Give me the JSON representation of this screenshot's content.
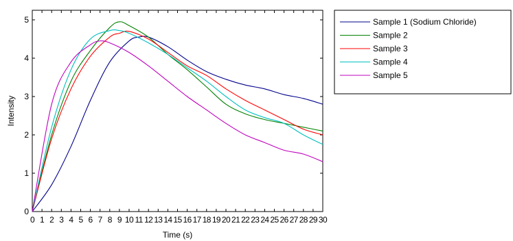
{
  "chart_data": {
    "type": "line",
    "title": "",
    "xlabel": "Time (s)",
    "ylabel": "Intensity",
    "xlim": [
      0,
      30
    ],
    "ylim": [
      0,
      5.25
    ],
    "xticks": [
      0,
      1,
      2,
      3,
      4,
      5,
      6,
      7,
      8,
      9,
      10,
      11,
      12,
      13,
      14,
      15,
      16,
      17,
      18,
      19,
      20,
      21,
      22,
      23,
      24,
      25,
      26,
      27,
      28,
      29,
      30
    ],
    "yticks": [
      0,
      1,
      2,
      3,
      4,
      5
    ],
    "grid": false,
    "legend_position": "outside-top-right",
    "series": [
      {
        "name": "Sample 1 (Sodium Chloride)",
        "color": "#00008b",
        "x": [
          0,
          2,
          4,
          6,
          8,
          10,
          11,
          12,
          14,
          16,
          18,
          20,
          22,
          24,
          26,
          28,
          30
        ],
        "y": [
          0,
          0.7,
          1.7,
          2.9,
          3.9,
          4.45,
          4.55,
          4.55,
          4.3,
          3.95,
          3.65,
          3.45,
          3.3,
          3.2,
          3.05,
          2.95,
          2.8
        ]
      },
      {
        "name": "Sample 2",
        "color": "#008000",
        "x": [
          0,
          2,
          4,
          6,
          8,
          9,
          10,
          12,
          14,
          16,
          18,
          20,
          22,
          24,
          26,
          28,
          30
        ],
        "y": [
          0,
          2.0,
          3.4,
          4.2,
          4.8,
          4.95,
          4.85,
          4.55,
          4.1,
          3.7,
          3.25,
          2.8,
          2.55,
          2.4,
          2.3,
          2.2,
          2.1
        ]
      },
      {
        "name": "Sample 3",
        "color": "#ff0000",
        "x": [
          0,
          2,
          4,
          6,
          8,
          9,
          10,
          12,
          14,
          16,
          18,
          20,
          22,
          24,
          26,
          28,
          30
        ],
        "y": [
          0,
          1.9,
          3.2,
          4.05,
          4.55,
          4.65,
          4.7,
          4.5,
          4.15,
          3.8,
          3.55,
          3.2,
          2.9,
          2.65,
          2.4,
          2.15,
          2.0
        ]
      },
      {
        "name": "Sample 4",
        "color": "#00bfbf",
        "x": [
          0,
          2,
          4,
          6,
          8,
          9,
          10,
          12,
          14,
          16,
          18,
          20,
          22,
          24,
          26,
          28,
          30
        ],
        "y": [
          0,
          2.2,
          3.7,
          4.5,
          4.72,
          4.72,
          4.65,
          4.4,
          4.1,
          3.75,
          3.4,
          3.0,
          2.65,
          2.45,
          2.3,
          2.0,
          1.75
        ]
      },
      {
        "name": "Sample 5",
        "color": "#bf00bf",
        "x": [
          0,
          2,
          4,
          6,
          7,
          8,
          10,
          12,
          14,
          16,
          18,
          20,
          22,
          24,
          26,
          28,
          30
        ],
        "y": [
          0,
          2.8,
          3.9,
          4.35,
          4.45,
          4.4,
          4.15,
          3.8,
          3.4,
          3.0,
          2.65,
          2.3,
          2.0,
          1.8,
          1.6,
          1.5,
          1.3
        ]
      }
    ]
  }
}
